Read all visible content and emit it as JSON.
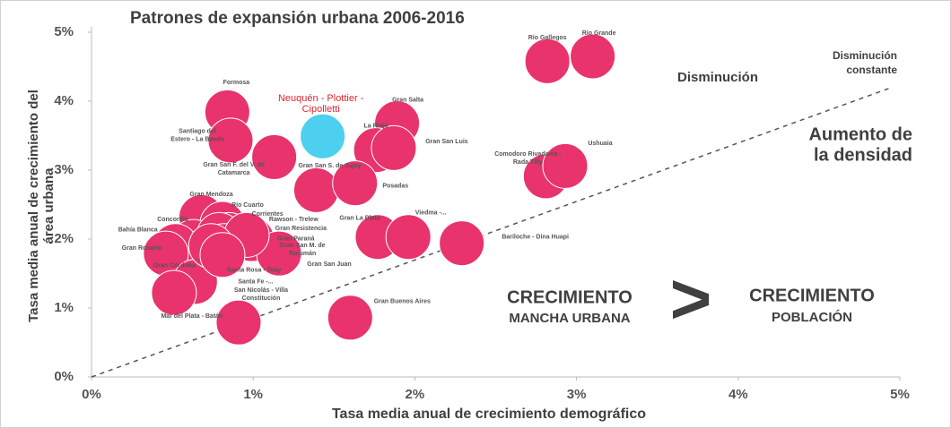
{
  "chart_data": {
    "type": "scatter",
    "title": "Patrones de expansión urbana 2006-2016",
    "x_label": "Tasa media anual de crecimiento demográfico",
    "y_label": [
      "Tasa media anual de crecimiento del",
      "área urbana"
    ],
    "xlim": [
      0,
      5
    ],
    "ylim": [
      0,
      5
    ],
    "xticks": [
      {
        "value": 0,
        "label": "0%"
      },
      {
        "value": 1,
        "label": "1%"
      },
      {
        "value": 2,
        "label": "2%"
      },
      {
        "value": 3,
        "label": "3%"
      },
      {
        "value": 4,
        "label": "4%"
      },
      {
        "value": 5,
        "label": "5%"
      }
    ],
    "yticks": [
      {
        "value": 0,
        "label": "0%"
      },
      {
        "value": 1,
        "label": "1%"
      },
      {
        "value": 2,
        "label": "2%"
      },
      {
        "value": 3,
        "label": "3%"
      },
      {
        "value": 4,
        "label": "4%"
      },
      {
        "value": 5,
        "label": "5%"
      }
    ],
    "reference_line": {
      "x": [
        0,
        4.95
      ],
      "y": [
        0,
        4.2
      ]
    },
    "annotations": {
      "decrease": "Disminución",
      "constant": [
        "Disminución",
        "constante"
      ],
      "density": [
        "Aumento de",
        "la densidad"
      ],
      "left_top": "CRECIMIENTO",
      "left_bottom": "MANCHA URBANA",
      "symbol": ">",
      "right_top": "CRECIMIENTO",
      "right_bottom": "POBLACIÓN"
    },
    "points": [
      {
        "x": 2.82,
        "y": 4.58,
        "label": [
          "Río Gallegos"
        ],
        "color": "#e8336d"
      },
      {
        "x": 3.1,
        "y": 4.65,
        "label": [
          "Río Grande"
        ],
        "color": "#e8336d"
      },
      {
        "x": 0.84,
        "y": 3.84,
        "label": [
          "Formosa"
        ],
        "color": "#e8336d"
      },
      {
        "x": 1.43,
        "y": 3.49,
        "label": [
          "Neuquén - Plottier -",
          "Cipolletti"
        ],
        "color": "#4dcfef",
        "label_color": "#e0262f"
      },
      {
        "x": 1.89,
        "y": 3.68,
        "label": [
          "Gran Salta"
        ],
        "color": "#e8336d"
      },
      {
        "x": 0.86,
        "y": 3.43,
        "label": [
          "Santiago del",
          "Estero - La Banda"
        ],
        "color": "#e8336d"
      },
      {
        "x": 1.76,
        "y": 3.29,
        "label": [
          "La Rioja"
        ],
        "color": "#e8336d"
      },
      {
        "x": 1.87,
        "y": 3.32,
        "label": [
          "Gran San Luis"
        ],
        "color": "#e8336d"
      },
      {
        "x": 1.13,
        "y": 3.19,
        "label": [
          "Gran San F. del V. de",
          "Catamarca"
        ],
        "color": "#e8336d"
      },
      {
        "x": 2.81,
        "y": 2.91,
        "label": [
          "Comodoro Rivadavia -",
          "Rada Tilly"
        ],
        "color": "#e8336d"
      },
      {
        "x": 2.93,
        "y": 3.06,
        "label": [
          "Ushuaia"
        ],
        "color": "#e8336d"
      },
      {
        "x": 1.39,
        "y": 2.71,
        "label": [
          "Gran San S. de Jujuy"
        ],
        "color": "#e8336d"
      },
      {
        "x": 1.63,
        "y": 2.81,
        "label": [
          "Posadas"
        ],
        "color": "#e8336d"
      },
      {
        "x": 0.68,
        "y": 2.32,
        "label": [
          "Gran Mendoza"
        ],
        "color": "#e8336d"
      },
      {
        "x": 0.81,
        "y": 2.22,
        "label": [
          "Río Cuarto"
        ],
        "color": "#e8336d"
      },
      {
        "x": 0.85,
        "y": 2.06,
        "label": [
          "Corrientes"
        ],
        "color": "#e8336d"
      },
      {
        "x": 0.63,
        "y": 1.96,
        "label": [
          "Concordia"
        ],
        "color": "#e8336d"
      },
      {
        "x": 0.52,
        "y": 1.9,
        "label": [
          "Bahía Blanca"
        ],
        "color": "#e8336d"
      },
      {
        "x": 0.46,
        "y": 1.79,
        "label": [
          "Gran Rosario"
        ],
        "color": "#e8336d"
      },
      {
        "x": 0.79,
        "y": 2.06,
        "label": [
          "Rawson - Trelew"
        ],
        "color": "#e8336d"
      },
      {
        "x": 0.99,
        "y": 2.0,
        "label": [
          "Gran Resistencia"
        ],
        "color": "#e8336d"
      },
      {
        "x": 0.82,
        "y": 1.9,
        "label": [
          "Gran Paraná"
        ],
        "color": "#e8336d"
      },
      {
        "x": 1.16,
        "y": 1.79,
        "label": [
          "Gran San M. de",
          "Tucumán"
        ],
        "color": "#e8336d"
      },
      {
        "x": 0.96,
        "y": 2.06,
        "label": [
          "Gran San Juan"
        ],
        "color": "#e8336d"
      },
      {
        "x": 0.64,
        "y": 1.38,
        "label": [
          "Gran Córdoba"
        ],
        "color": "#e8336d"
      },
      {
        "x": 0.74,
        "y": 1.9,
        "label": [
          "Santa Rosa - Toay"
        ],
        "color": "#e8336d"
      },
      {
        "x": 0.81,
        "y": 1.77,
        "label": [
          "Santa Fe -..."
        ],
        "color": "#e8336d"
      },
      {
        "x": 0.51,
        "y": 1.22,
        "label": [
          "Mar del Plata - Batán"
        ],
        "color": "#e8336d"
      },
      {
        "x": 0.91,
        "y": 0.79,
        "label": [
          "San Nicolás - Villa",
          "Constitución"
        ],
        "color": "#e8336d"
      },
      {
        "x": 1.6,
        "y": 0.86,
        "label": [
          "Gran Buenos Aires"
        ],
        "color": "#e8336d"
      },
      {
        "x": 1.77,
        "y": 2.03,
        "label": [
          "Gran La Plata"
        ],
        "color": "#e8336d"
      },
      {
        "x": 1.96,
        "y": 2.03,
        "label": [
          "Viedma -..."
        ],
        "color": "#e8336d"
      },
      {
        "x": 2.29,
        "y": 1.94,
        "label": [
          "Bariloche - Dina Huapi"
        ],
        "color": "#e8336d"
      }
    ]
  }
}
